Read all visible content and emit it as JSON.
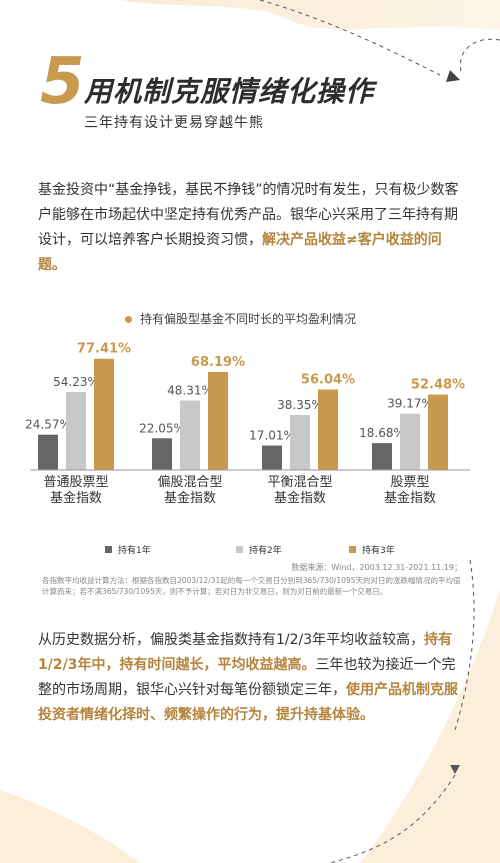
{
  "header": {
    "number": "5",
    "title": "用机制克服情绪化操作",
    "subtitle": "三年持有设计更易穿越牛熊"
  },
  "intro": {
    "text": "基金投资中“基金挣钱，基民不挣钱”的情况时有发生，只有极少数客户能够在市场起伏中坚定持有优秀产品。银华心兴采用了三年持有期设计，可以培养客户长期投资习惯，",
    "highlight": "解决产品收益≠客户收益的问题。"
  },
  "chart_title": "持有偏股型基金不同时长的平均盈利情况",
  "chart_data": {
    "type": "bar",
    "categories": [
      "普通股票型\n基金指数",
      "偏股混合型\n基金指数",
      "平衡混合型\n基金指数",
      "股票型\n基金指数"
    ],
    "category_lines": [
      [
        "普通股票型",
        "基金指数"
      ],
      [
        "偏股混合型",
        "基金指数"
      ],
      [
        "平衡混合型",
        "基金指数"
      ],
      [
        "股票型",
        "基金指数"
      ]
    ],
    "series": [
      {
        "name": "持有1年",
        "values": [
          24.57,
          22.05,
          17.01,
          18.68
        ],
        "labels": [
          "24.57%",
          "22.05%",
          "17.01%",
          "18.68%"
        ],
        "color": "#666666"
      },
      {
        "name": "持有2年",
        "values": [
          54.23,
          48.31,
          38.35,
          39.17
        ],
        "labels": [
          "54.23%",
          "48.31%",
          "38.35%",
          "39.17%"
        ],
        "color": "#c8c8c8"
      },
      {
        "name": "持有3年",
        "values": [
          77.41,
          68.19,
          56.04,
          52.48
        ],
        "labels": [
          "77.41%",
          "68.19%",
          "56.04%",
          "52.48%"
        ],
        "color": "#c8994f"
      }
    ],
    "ylim": [
      0,
      80
    ]
  },
  "legend": [
    "持有1年",
    "持有2年",
    "持有3年"
  ],
  "source": "数据来源：Wind，2003.12.31-2021.11.19；",
  "note": "各指数平均收益计算方法：根据各指数自2003/12/31起的每一个交易日分别到365/730/1095天的对日的涨跌幅情况的平均值计算而来；若不满365/730/1095天，则不予计算；若对日为非交易日，则为对日前的最新一个交易日。",
  "conclusion": {
    "text1": "从历史数据分析，偏股类基金指数持有1/2/3年平均收益较高，",
    "hl1": "持有1/2/3年中，持有时间越长，平均收益越高。",
    "text2": "三年也较为接近一个完整的市场周期，银华心兴针对每笔份额锁定三年，",
    "hl2": "使用产品机制克服投资者情绪化择时、频繁操作的行为，提升持基体验。"
  },
  "colors": {
    "gold": "#c8994f",
    "dark_gray": "#666666",
    "light_gray": "#c8c8c8",
    "bg_tint": "#fbefdc"
  }
}
